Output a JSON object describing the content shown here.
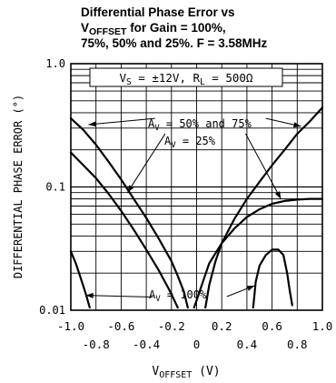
{
  "chart_data": {
    "type": "line",
    "title": {
      "line1": "Differential Phase Error vs",
      "line2_main": "V",
      "line2_sub": "OFFSET",
      "line2_rest": " for Gain = 100%,",
      "line3": "75%, 50% and 25%. F = 3.58MHz"
    },
    "ylabel": "DIFFERENTIAL PHASE ERROR (°)",
    "xlabel": {
      "main": "V",
      "sub": "OFFSET",
      "rest": " (V)"
    },
    "xlim": [
      -1.0,
      1.0
    ],
    "ylim": [
      0.01,
      1.0
    ],
    "y_scale": "log",
    "grid": true,
    "x_ticks_upper": [
      "-1.0",
      "-0.6",
      "-0.2",
      "0.2",
      "0.6",
      "1.0"
    ],
    "x_ticks_lower": [
      "-0.8",
      "-0.4",
      "0",
      "0.4",
      "0.8"
    ],
    "y_ticks": [
      "1.0",
      "0.1",
      "0.01"
    ],
    "conditions": "V_S = ±12V, R_L = 500Ω",
    "series": [
      {
        "name": "A_V = 50% and 75%",
        "curves": [
          [
            [
              -1.0,
              0.36
            ],
            [
              -0.9,
              0.29
            ],
            [
              -0.8,
              0.22
            ],
            [
              -0.7,
              0.16
            ],
            [
              -0.6,
              0.115
            ],
            [
              -0.5,
              0.08
            ],
            [
              -0.4,
              0.056
            ],
            [
              -0.3,
              0.038
            ],
            [
              -0.2,
              0.025
            ],
            [
              -0.15,
              0.019
            ],
            [
              -0.1,
              0.014
            ],
            [
              -0.07,
              0.0105
            ]
          ],
          [
            [
              0.07,
              0.0105
            ],
            [
              0.1,
              0.016
            ],
            [
              0.15,
              0.025
            ],
            [
              0.2,
              0.035
            ],
            [
              0.3,
              0.055
            ],
            [
              0.4,
              0.08
            ],
            [
              0.5,
              0.11
            ],
            [
              0.6,
              0.15
            ],
            [
              0.7,
              0.2
            ],
            [
              0.8,
              0.27
            ],
            [
              0.9,
              0.34
            ],
            [
              1.0,
              0.44
            ]
          ]
        ]
      },
      {
        "name": "A_V = 25%",
        "curves": [
          [
            [
              -1.0,
              0.19
            ],
            [
              -0.9,
              0.15
            ],
            [
              -0.8,
              0.118
            ],
            [
              -0.7,
              0.088
            ],
            [
              -0.6,
              0.064
            ],
            [
              -0.5,
              0.045
            ],
            [
              -0.4,
              0.031
            ],
            [
              -0.3,
              0.021
            ],
            [
              -0.22,
              0.0148
            ],
            [
              -0.18,
              0.0122
            ],
            [
              -0.15,
              0.0105
            ]
          ],
          [
            [
              -0.02,
              0.0105
            ],
            [
              0.0,
              0.012
            ],
            [
              0.05,
              0.017
            ],
            [
              0.1,
              0.024
            ],
            [
              0.2,
              0.035
            ],
            [
              0.3,
              0.046
            ],
            [
              0.4,
              0.057
            ],
            [
              0.5,
              0.066
            ],
            [
              0.6,
              0.073
            ],
            [
              0.7,
              0.077
            ],
            [
              0.8,
              0.079
            ],
            [
              0.9,
              0.08
            ],
            [
              1.0,
              0.08
            ]
          ]
        ]
      },
      {
        "name": "A_V = 100%",
        "curves": [
          [
            [
              -1.0,
              0.03
            ],
            [
              -0.96,
              0.024
            ],
            [
              -0.92,
              0.018
            ],
            [
              -0.88,
              0.0135
            ],
            [
              -0.85,
              0.0105
            ]
          ],
          [
            [
              0.45,
              0.0105
            ],
            [
              0.47,
              0.017
            ],
            [
              0.5,
              0.023
            ],
            [
              0.55,
              0.028
            ],
            [
              0.6,
              0.031
            ],
            [
              0.65,
              0.031
            ],
            [
              0.69,
              0.028
            ],
            [
              0.72,
              0.02
            ],
            [
              0.74,
              0.0145
            ],
            [
              0.76,
              0.011
            ]
          ]
        ]
      }
    ],
    "annotations": [
      {
        "text": "A_V = 50% and 75%"
      },
      {
        "text": "A_V = 25%"
      },
      {
        "text": "A_V = 100%"
      }
    ]
  }
}
